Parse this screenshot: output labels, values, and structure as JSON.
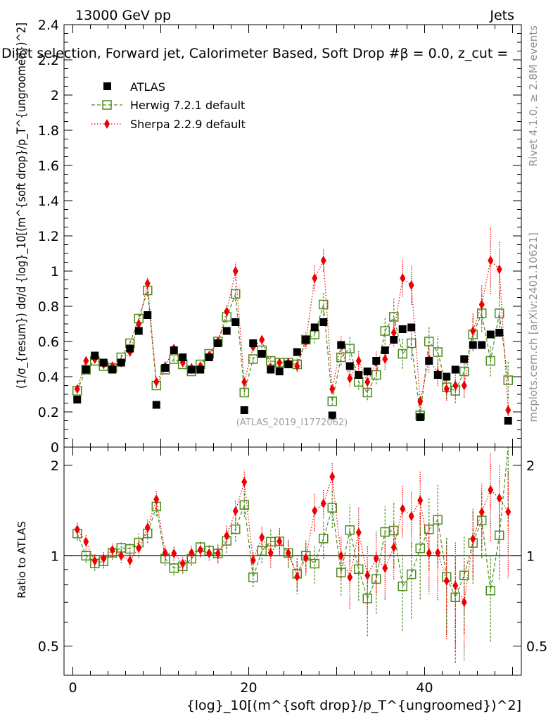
{
  "header": {
    "energy_label": "13000 GeV pp",
    "category_label": "Jets",
    "rivet_label": "Rivet 4.1.0, ≥ 2.8M events",
    "mcplots_label": "mcplots.cern.ch [arXiv:2401.10621]"
  },
  "chart_data": {
    "type": "scatter",
    "title": "Dijet selection, Forward jet, Calorimeter Based, Soft Drop #β = 0.0, z_cut =",
    "watermark": "(ATLAS_2019_I1772062)",
    "xlabel": "{log}_10[(m^{soft drop}/p_T^{ungroomed})^2]",
    "ylabel": "(1/σ_{resum}) dσ/d {log}_10[(m^{soft drop}/p_T^{ungroomed})^2]",
    "ratio_ylabel": "Ratio to ATLAS",
    "xlim": [
      -1,
      51
    ],
    "ylim": [
      0,
      2.4
    ],
    "ratio_ylim": [
      0.4,
      2.3
    ],
    "x_ticks": [
      "0",
      "20",
      "40"
    ],
    "y_ticks": [
      "0",
      "0.2",
      "0.4",
      "0.6",
      "0.8",
      "1",
      "1.2",
      "1.4",
      "1.6",
      "1.8",
      "2",
      "2.2",
      "2.4"
    ],
    "ratio_y_ticks": [
      "0.5",
      "1",
      "2"
    ],
    "legend": [
      "ATLAS",
      "Herwig 7.2.1 default",
      "Sherpa 2.2.9 default"
    ],
    "x": [
      0.5,
      1.5,
      2.5,
      3.5,
      4.5,
      5.5,
      6.5,
      7.5,
      8.5,
      9.5,
      10.5,
      11.5,
      12.5,
      13.5,
      14.5,
      15.5,
      16.5,
      17.5,
      18.5,
      19.5,
      20.5,
      21.5,
      22.5,
      23.5,
      24.5,
      25.5,
      26.5,
      27.5,
      28.5,
      29.5,
      30.5,
      31.5,
      32.5,
      33.5,
      34.5,
      35.5,
      36.5,
      37.5,
      38.5,
      39.5,
      40.5,
      41.5,
      42.5,
      43.5,
      44.5,
      45.5,
      46.5,
      47.5,
      48.5,
      49.5
    ],
    "series": [
      {
        "name": "ATLAS",
        "color": "#000000",
        "marker": "square-filled",
        "values": [
          0.27,
          0.44,
          0.52,
          0.48,
          0.44,
          0.48,
          0.56,
          0.66,
          0.75,
          0.24,
          0.45,
          0.55,
          0.51,
          0.44,
          0.44,
          0.51,
          0.59,
          0.66,
          0.71,
          0.21,
          0.59,
          0.53,
          0.44,
          0.43,
          0.47,
          0.54,
          0.61,
          0.68,
          0.71,
          0.18,
          0.58,
          0.46,
          0.41,
          0.43,
          0.49,
          0.55,
          0.61,
          0.67,
          0.68,
          0.17,
          0.49,
          0.41,
          0.4,
          0.44,
          0.5,
          0.58,
          0.58,
          0.64,
          0.65,
          0.15
        ]
      },
      {
        "name": "Herwig 7.2.1 default",
        "color": "#4c8c1c",
        "marker": "square-open",
        "line": "dashed",
        "values": [
          0.32,
          0.44,
          0.49,
          0.46,
          0.45,
          0.51,
          0.59,
          0.73,
          0.89,
          0.35,
          0.44,
          0.5,
          0.47,
          0.43,
          0.47,
          0.53,
          0.6,
          0.74,
          0.87,
          0.31,
          0.5,
          0.55,
          0.49,
          0.48,
          0.48,
          0.47,
          0.61,
          0.64,
          0.81,
          0.26,
          0.51,
          0.56,
          0.37,
          0.31,
          0.41,
          0.66,
          0.74,
          0.53,
          0.59,
          0.18,
          0.6,
          0.54,
          0.34,
          0.32,
          0.43,
          0.64,
          0.76,
          0.49,
          0.76,
          0.38
        ]
      },
      {
        "name": "Sherpa 2.2.9 default",
        "color": "#ee0000",
        "marker": "diamond-filled",
        "line": "dotted",
        "values": [
          0.33,
          0.49,
          0.5,
          0.47,
          0.46,
          0.48,
          0.54,
          0.7,
          0.93,
          0.37,
          0.46,
          0.56,
          0.48,
          0.45,
          0.46,
          0.52,
          0.6,
          0.77,
          1.0,
          0.37,
          0.57,
          0.61,
          0.45,
          0.48,
          0.48,
          0.46,
          0.6,
          0.96,
          1.06,
          0.33,
          0.58,
          0.39,
          0.49,
          0.37,
          0.48,
          0.5,
          0.65,
          0.96,
          0.92,
          0.26,
          0.5,
          0.42,
          0.33,
          0.35,
          0.35,
          0.66,
          0.81,
          1.06,
          1.01,
          0.21
        ]
      }
    ],
    "error_fraction": {
      "ATLAS": 0.0,
      "Herwig 7.2.1 default": [
        0.03,
        0.03,
        0.03,
        0.03,
        0.03,
        0.03,
        0.03,
        0.04,
        0.04,
        0.04,
        0.03,
        0.03,
        0.03,
        0.03,
        0.03,
        0.03,
        0.04,
        0.05,
        0.05,
        0.05,
        0.04,
        0.05,
        0.06,
        0.06,
        0.06,
        0.07,
        0.07,
        0.08,
        0.08,
        0.08,
        0.09,
        0.12,
        0.12,
        0.14,
        0.13,
        0.12,
        0.14,
        0.16,
        0.16,
        0.18,
        0.15,
        0.17,
        0.2,
        0.22,
        0.2,
        0.15,
        0.14,
        0.18,
        0.16,
        0.28
      ],
      "Sherpa 2.2.9 default": [
        0.03,
        0.03,
        0.03,
        0.03,
        0.03,
        0.03,
        0.03,
        0.04,
        0.04,
        0.04,
        0.03,
        0.03,
        0.03,
        0.03,
        0.03,
        0.03,
        0.04,
        0.05,
        0.05,
        0.05,
        0.04,
        0.05,
        0.06,
        0.06,
        0.06,
        0.07,
        0.07,
        0.08,
        0.06,
        0.06,
        0.09,
        0.12,
        0.12,
        0.14,
        0.13,
        0.12,
        0.12,
        0.11,
        0.12,
        0.14,
        0.15,
        0.17,
        0.2,
        0.22,
        0.2,
        0.15,
        0.14,
        0.18,
        0.16,
        0.22
      ]
    }
  }
}
